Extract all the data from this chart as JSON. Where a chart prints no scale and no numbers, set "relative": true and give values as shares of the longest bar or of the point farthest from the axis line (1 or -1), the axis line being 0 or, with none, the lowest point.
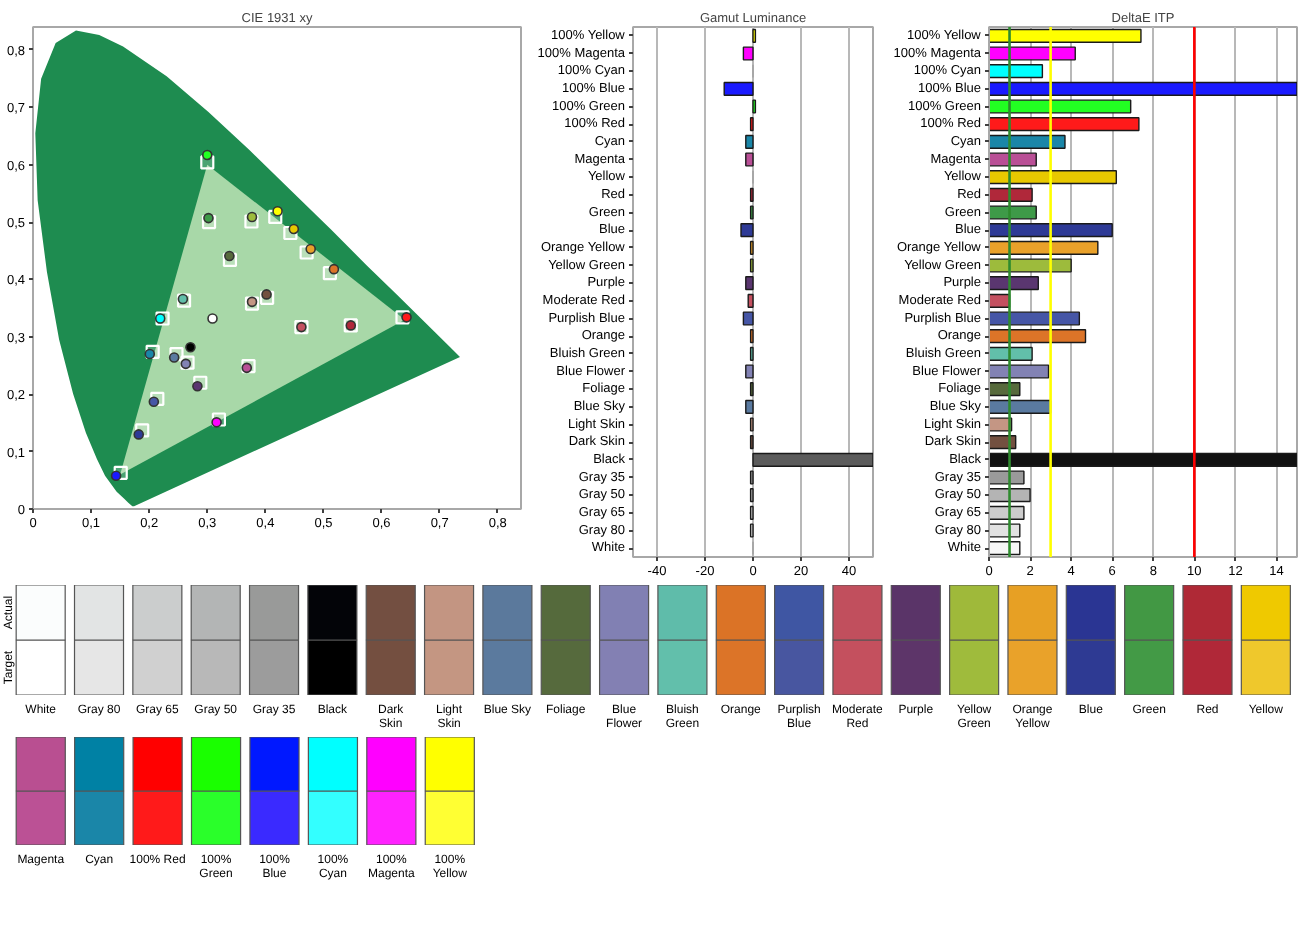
{
  "chart_data": [
    {
      "type": "scatter",
      "title": "CIE 1931 xy",
      "xlim": [
        0,
        0.84
      ],
      "ylim": [
        0,
        0.84
      ],
      "grid": false,
      "xticks": [
        0,
        {
          "value": 0.1,
          "label": "0,1"
        },
        {
          "value": 0.2,
          "label": "0,2"
        },
        {
          "value": 0.3,
          "label": "0,3"
        },
        {
          "value": 0.4,
          "label": "0,4"
        },
        {
          "value": 0.5,
          "label": "0,5"
        },
        {
          "value": 0.6,
          "label": "0,6"
        },
        {
          "value": 0.7,
          "label": "0,7"
        },
        {
          "value": 0.8,
          "label": "0,8"
        }
      ],
      "yticks": [
        0,
        {
          "value": 0.1,
          "label": "0,1"
        },
        {
          "value": 0.2,
          "label": "0,2"
        },
        {
          "value": 0.3,
          "label": "0,3"
        },
        {
          "value": 0.4,
          "label": "0,4"
        },
        {
          "value": 0.5,
          "label": "0,5"
        },
        {
          "value": 0.6,
          "label": "0,6"
        },
        {
          "value": 0.7,
          "label": "0,7"
        },
        {
          "value": 0.8,
          "label": "0,8"
        }
      ],
      "series": [
        {
          "type": "area",
          "color": "#1e8c50",
          "x": [
            0.174,
            0.171,
            0.164,
            0.157,
            0.144,
            0.124,
            0.11,
            0.091,
            0.069,
            0.045,
            0.024,
            0.008,
            0.004,
            0.014,
            0.039,
            0.074,
            0.114,
            0.155,
            0.23,
            0.302,
            0.373,
            0.444,
            0.513,
            0.575,
            0.627,
            0.692,
            0.719,
            0.735
          ],
          "values": [
            0.005,
            0.005,
            0.011,
            0.018,
            0.03,
            0.058,
            0.087,
            0.133,
            0.201,
            0.295,
            0.413,
            0.538,
            0.655,
            0.75,
            0.812,
            0.834,
            0.826,
            0.806,
            0.754,
            0.692,
            0.625,
            0.555,
            0.487,
            0.424,
            0.373,
            0.308,
            0.281,
            0.265
          ]
        },
        {
          "type": "area",
          "color": "#a8d8a8",
          "x": [
            0.64,
            0.3,
            0.15
          ],
          "values": [
            0.33,
            0.6,
            0.06
          ]
        },
        {
          "type": "scatter",
          "marker": "square",
          "color": "#ffffff",
          "x": [
            0.3,
            0.636,
            0.151,
            0.223,
            0.32,
            0.417,
            0.443,
            0.471,
            0.511,
            0.303,
            0.376,
            0.339,
            0.403,
            0.377,
            0.462,
            0.547,
            0.26,
            0.206,
            0.247,
            0.266,
            0.288,
            0.371,
            0.214,
            0.188
          ],
          "values": [
            0.604,
            0.334,
            0.063,
            0.332,
            0.156,
            0.509,
            0.481,
            0.447,
            0.411,
            0.5,
            0.501,
            0.434,
            0.368,
            0.358,
            0.317,
            0.32,
            0.363,
            0.274,
            0.27,
            0.255,
            0.22,
            0.249,
            0.192,
            0.137
          ]
        },
        {
          "type": "scatter",
          "marker": "circle",
          "x": [
            0.3,
            0.643,
            0.143,
            0.219,
            0.316,
            0.421,
            0.449,
            0.478,
            0.518,
            0.302,
            0.377,
            0.338,
            0.402,
            0.377,
            0.462,
            0.547,
            0.258,
            0.201,
            0.243,
            0.263,
            0.283,
            0.368,
            0.208,
            0.182,
            0.271,
            0.309
          ],
          "values": [
            0.617,
            0.334,
            0.058,
            0.332,
            0.151,
            0.519,
            0.488,
            0.453,
            0.418,
            0.507,
            0.509,
            0.441,
            0.374,
            0.361,
            0.317,
            0.32,
            0.366,
            0.27,
            0.264,
            0.253,
            0.214,
            0.246,
            0.187,
            0.13,
            0.282,
            0.332
          ],
          "colors": [
            "#22ff22",
            "#ff1a1a",
            "#1a1aff",
            "#00ffff",
            "#ff00ff",
            "#ffff00",
            "#e8c800",
            "#e9a12a",
            "#dc7428",
            "#3e9a48",
            "#9dbb3c",
            "#576a3c",
            "#735040",
            "#c49684",
            "#c45060",
            "#b0283a",
            "#62bfaa",
            "#1a86a8",
            "#5a7aa0",
            "#8282b4",
            "#5a3670",
            "#b94f96",
            "#4656a6",
            "#2e3a96",
            "#000000",
            "#ffffff"
          ]
        }
      ]
    },
    {
      "type": "bar",
      "orientation": "horizontal",
      "title": "Gamut Luminance",
      "grid": "x",
      "xlim": [
        -50,
        50
      ],
      "xticks": [
        -40,
        -20,
        0,
        20,
        40
      ],
      "categories": [
        "100% Yellow",
        "100% Magenta",
        "100% Cyan",
        "100% Blue",
        "100% Green",
        "100% Red",
        "Cyan",
        "Magenta",
        "Yellow",
        "Red",
        "Green",
        "Blue",
        "Orange Yellow",
        "Yellow Green",
        "Purple",
        "Moderate Red",
        "Purplish Blue",
        "Orange",
        "Bluish Green",
        "Blue Flower",
        "Foliage",
        "Blue Sky",
        "Light Skin",
        "Dark Skin",
        "Black",
        "Gray 35",
        "Gray 50",
        "Gray 65",
        "Gray 80",
        "White"
      ],
      "values": [
        1,
        -4,
        0,
        -12,
        1,
        -1,
        -3,
        -3,
        0,
        -1,
        -1,
        -5,
        -1,
        -1,
        -3,
        -2,
        -4,
        -1,
        -1,
        -3,
        -1,
        -3,
        -1,
        -1,
        50,
        -1,
        -1,
        -1,
        -1,
        0
      ],
      "colors": [
        "#ffff00",
        "#ff00ff",
        "#a0a0a0",
        "#1a1aff",
        "#22ff22",
        "#ff1a1a",
        "#1a86a8",
        "#b94f96",
        "#a0a0a0",
        "#b0283a",
        "#3e9a48",
        "#2e3a96",
        "#e9a12a",
        "#9dbb3c",
        "#5a3670",
        "#c45060",
        "#4656a6",
        "#dc7428",
        "#62bfaa",
        "#8282b4",
        "#576a3c",
        "#5a7aa0",
        "#c49684",
        "#735040",
        "#5c5c5c",
        "#9a9a9a",
        "#b4b4b4",
        "#cccccc",
        "#e2e2e2",
        "#a0a0a0"
      ]
    },
    {
      "type": "bar",
      "orientation": "horizontal",
      "title": "DeltaE ITP",
      "grid": "x",
      "xlim": [
        0,
        15
      ],
      "xticks": [
        0,
        2,
        4,
        6,
        8,
        10,
        12,
        14
      ],
      "categories": [
        "100% Yellow",
        "100% Magenta",
        "100% Cyan",
        "100% Blue",
        "100% Green",
        "100% Red",
        "Cyan",
        "Magenta",
        "Yellow",
        "Red",
        "Green",
        "Blue",
        "Orange Yellow",
        "Yellow Green",
        "Purple",
        "Moderate Red",
        "Purplish Blue",
        "Orange",
        "Bluish Green",
        "Blue Flower",
        "Foliage",
        "Blue Sky",
        "Light Skin",
        "Dark Skin",
        "Black",
        "Gray 35",
        "Gray 50",
        "Gray 65",
        "Gray 80",
        "White"
      ],
      "values": [
        7.4,
        4.2,
        2.6,
        15,
        6.9,
        7.3,
        3.7,
        2.3,
        6.2,
        2.1,
        2.3,
        6.0,
        5.3,
        4.0,
        2.4,
        1.0,
        4.4,
        4.7,
        2.1,
        2.9,
        1.5,
        3.0,
        1.1,
        1.3,
        15,
        1.7,
        2.0,
        1.7,
        1.5,
        1.5
      ],
      "colors": [
        "#ffff00",
        "#ff00ff",
        "#00ffff",
        "#1a1aff",
        "#22ff22",
        "#ff1a1a",
        "#1a86a8",
        "#b94f96",
        "#e8c800",
        "#b0283a",
        "#3e9a48",
        "#2e3a96",
        "#e9a12a",
        "#9dbb3c",
        "#5a3670",
        "#c45060",
        "#4656a6",
        "#dc7428",
        "#62bfaa",
        "#8282b4",
        "#576a3c",
        "#5a7aa0",
        "#c49684",
        "#735040",
        "#111111",
        "#9a9a9a",
        "#b4b4b4",
        "#cccccc",
        "#e2e2e2",
        "#f6f6f6"
      ],
      "ref_lines": [
        {
          "axis": "x",
          "value": 1,
          "color": "#2e8b2e"
        },
        {
          "axis": "x",
          "value": 3,
          "color": "#ffff00"
        },
        {
          "axis": "x",
          "value": 10,
          "color": "#ff0000"
        }
      ]
    },
    {
      "type": "bar",
      "relative": true,
      "stacked": true,
      "categories": [
        "White",
        "Gray 80",
        "Gray 65",
        "Gray 50",
        "Gray 35",
        "Black",
        "Dark Skin",
        "Light Skin",
        "Blue Sky",
        "Foliage",
        "Blue Flower",
        "Bluish Green",
        "Orange",
        "Purplish Blue",
        "Moderate Red",
        "Purple",
        "Yellow Green",
        "Orange Yellow",
        "Blue",
        "Green",
        "Red",
        "Yellow"
      ],
      "series": [
        {
          "name": "Target",
          "values": [
            0.5,
            0.5,
            0.5,
            0.5,
            0.5,
            0.5,
            0.5,
            0.5,
            0.5,
            0.5,
            0.5,
            0.5,
            0.5,
            0.5,
            0.5,
            0.5,
            0.5,
            0.5,
            0.5,
            0.5,
            0.5,
            0.5
          ],
          "colors": [
            "#ffffff",
            "#e6e6e6",
            "#d0d0d0",
            "#b8b8b8",
            "#9c9c9c",
            "#000000",
            "#744f40",
            "#c49682",
            "#5b7a9e",
            "#566a3d",
            "#8380b3",
            "#62bfab",
            "#dc7428",
            "#4856a0",
            "#c4505e",
            "#5d3569",
            "#9fbb3c",
            "#e9a22a",
            "#2e3a93",
            "#439a46",
            "#b02838",
            "#efc82c"
          ]
        },
        {
          "name": "Actual",
          "values": [
            0.5,
            0.5,
            0.5,
            0.5,
            0.5,
            0.5,
            0.5,
            0.5,
            0.5,
            0.5,
            0.5,
            0.5,
            0.5,
            0.5,
            0.5,
            0.5,
            0.5,
            0.5,
            0.5,
            0.5,
            0.5,
            0.5
          ],
          "colors": [
            "#fbfdfd",
            "#e2e4e4",
            "#cbcdcd",
            "#b3b5b5",
            "#999a99",
            "#030408",
            "#734f41",
            "#c39582",
            "#5b799c",
            "#556a3c",
            "#8180b3",
            "#5fbcaa",
            "#db7326",
            "#3f56a3",
            "#c14f5d",
            "#5a3468",
            "#9fb93a",
            "#e7a024",
            "#2a3593",
            "#429844",
            "#af2936",
            "#efc900"
          ]
        }
      ]
    },
    {
      "type": "bar",
      "relative": true,
      "stacked": true,
      "categories": [
        "Magenta",
        "Cyan",
        "100% Red",
        "100% Green",
        "100% Blue",
        "100% Cyan",
        "100% Magenta",
        "100% Yellow"
      ],
      "series": [
        {
          "values": [
            0.5,
            0.5,
            0.5,
            0.5,
            0.5,
            0.5,
            0.5,
            0.5
          ],
          "colors": [
            "#bb5195",
            "#1a86a8",
            "#ff1a1a",
            "#2aff2a",
            "#3a2aff",
            "#33ffff",
            "#ff22ff",
            "#ffff33"
          ]
        },
        {
          "values": [
            0.5,
            0.5,
            0.5,
            0.5,
            0.5,
            0.5,
            0.5,
            0.5
          ],
          "colors": [
            "#b94f91",
            "#0081a4",
            "#ff0000",
            "#1aff00",
            "#0018ff",
            "#00ffff",
            "#ff00ff",
            "#ffff00"
          ]
        }
      ]
    }
  ]
}
